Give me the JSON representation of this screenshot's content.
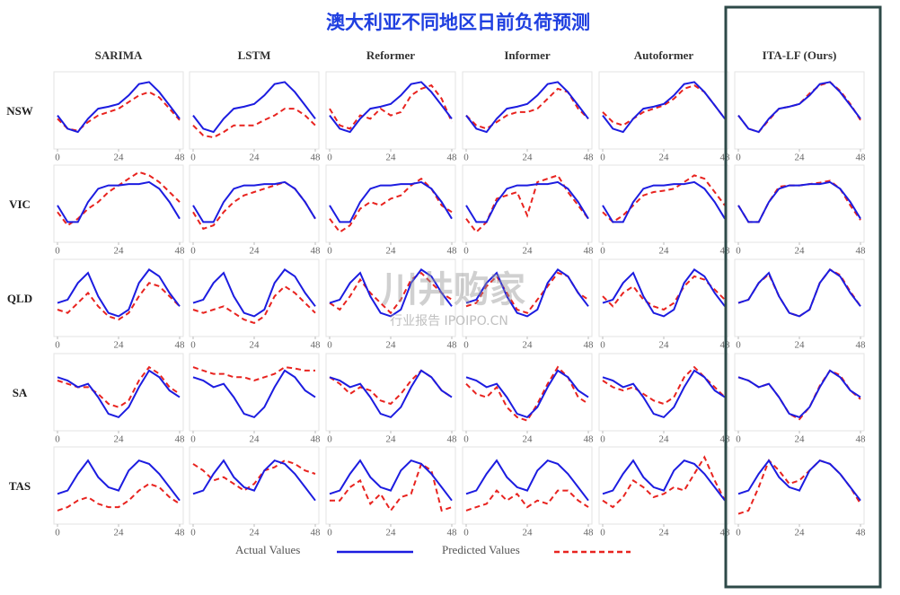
{
  "chart_data": {
    "type": "line",
    "title": "澳大利亚不同地区日前负荷预测",
    "models": [
      "SARIMA",
      "LSTM",
      "Reformer",
      "Informer",
      "Autoformer",
      "ITA-LF (Ours)"
    ],
    "regions": [
      "NSW",
      "VIC",
      "QLD",
      "SA",
      "TAS"
    ],
    "highlight": 5,
    "x": [
      0,
      4,
      8,
      12,
      16,
      20,
      24,
      28,
      32,
      36,
      40,
      44,
      48
    ],
    "xlim": [
      0,
      48
    ],
    "xticks": [
      0,
      24,
      48
    ],
    "ylim": [
      0,
      1.05
    ],
    "series": [
      {
        "name": "Actual Values",
        "color": "#1c1ce0",
        "style": "solid"
      },
      {
        "name": "Predicted Values",
        "color": "#e8231f",
        "style": "dashed"
      }
    ],
    "actual": [
      [
        0.45,
        0.25,
        0.2,
        0.4,
        0.55,
        0.58,
        0.62,
        0.75,
        0.92,
        0.95,
        0.8,
        0.6,
        0.4
      ],
      [
        0.5,
        0.25,
        0.25,
        0.55,
        0.75,
        0.8,
        0.8,
        0.82,
        0.82,
        0.85,
        0.75,
        0.55,
        0.3
      ],
      [
        0.45,
        0.5,
        0.75,
        0.9,
        0.55,
        0.3,
        0.25,
        0.35,
        0.75,
        0.95,
        0.85,
        0.6,
        0.4
      ],
      [
        0.75,
        0.7,
        0.6,
        0.65,
        0.45,
        0.2,
        0.15,
        0.3,
        0.6,
        0.85,
        0.75,
        0.55,
        0.45
      ],
      [
        0.4,
        0.45,
        0.7,
        0.9,
        0.65,
        0.5,
        0.45,
        0.75,
        0.9,
        0.85,
        0.7,
        0.5,
        0.3
      ]
    ],
    "predicted": [
      [
        [
          0.4,
          0.25,
          0.22,
          0.35,
          0.45,
          0.5,
          0.55,
          0.65,
          0.75,
          0.8,
          0.72,
          0.55,
          0.38
        ],
        [
          0.3,
          0.15,
          0.12,
          0.2,
          0.3,
          0.3,
          0.3,
          0.38,
          0.45,
          0.55,
          0.55,
          0.45,
          0.3
        ],
        [
          0.55,
          0.3,
          0.25,
          0.45,
          0.4,
          0.55,
          0.45,
          0.5,
          0.75,
          0.85,
          0.9,
          0.7,
          0.35
        ],
        [
          0.45,
          0.3,
          0.25,
          0.35,
          0.45,
          0.5,
          0.5,
          0.55,
          0.7,
          0.85,
          0.8,
          0.55,
          0.4
        ],
        [
          0.5,
          0.35,
          0.3,
          0.4,
          0.5,
          0.55,
          0.6,
          0.7,
          0.85,
          0.9,
          0.8,
          0.6,
          0.4
        ],
        [
          0.45,
          0.25,
          0.2,
          0.38,
          0.55,
          0.58,
          0.62,
          0.78,
          0.9,
          0.95,
          0.82,
          0.62,
          0.38
        ]
      ],
      [
        [
          0.4,
          0.2,
          0.3,
          0.45,
          0.55,
          0.7,
          0.8,
          0.9,
          1.0,
          0.95,
          0.85,
          0.7,
          0.55
        ],
        [
          0.4,
          0.15,
          0.2,
          0.4,
          0.55,
          0.65,
          0.7,
          0.75,
          0.8,
          0.85,
          0.75,
          0.55,
          0.3
        ],
        [
          0.3,
          0.1,
          0.2,
          0.45,
          0.55,
          0.5,
          0.6,
          0.65,
          0.8,
          0.9,
          0.75,
          0.5,
          0.4
        ],
        [
          0.3,
          0.1,
          0.25,
          0.6,
          0.65,
          0.7,
          0.35,
          0.85,
          0.9,
          0.95,
          0.7,
          0.5,
          0.3
        ],
        [
          0.4,
          0.25,
          0.35,
          0.5,
          0.65,
          0.7,
          0.72,
          0.75,
          0.85,
          0.95,
          0.9,
          0.7,
          0.5
        ],
        [
          0.5,
          0.25,
          0.25,
          0.55,
          0.78,
          0.8,
          0.8,
          0.82,
          0.84,
          0.87,
          0.75,
          0.5,
          0.28
        ]
      ],
      [
        [
          0.35,
          0.3,
          0.45,
          0.6,
          0.4,
          0.25,
          0.2,
          0.3,
          0.55,
          0.75,
          0.7,
          0.55,
          0.4
        ],
        [
          0.35,
          0.3,
          0.35,
          0.4,
          0.3,
          0.2,
          0.15,
          0.25,
          0.55,
          0.7,
          0.6,
          0.45,
          0.3
        ],
        [
          0.45,
          0.35,
          0.55,
          0.8,
          0.6,
          0.45,
          0.3,
          0.5,
          0.8,
          0.9,
          0.75,
          0.6,
          0.5
        ],
        [
          0.4,
          0.45,
          0.7,
          0.85,
          0.6,
          0.35,
          0.3,
          0.5,
          0.7,
          0.9,
          0.85,
          0.6,
          0.5
        ],
        [
          0.55,
          0.4,
          0.6,
          0.7,
          0.5,
          0.4,
          0.35,
          0.45,
          0.7,
          0.85,
          0.8,
          0.65,
          0.5
        ],
        [
          0.45,
          0.5,
          0.75,
          0.88,
          0.55,
          0.3,
          0.25,
          0.35,
          0.75,
          0.95,
          0.87,
          0.62,
          0.4
        ]
      ],
      [
        [
          0.7,
          0.65,
          0.6,
          0.6,
          0.5,
          0.35,
          0.3,
          0.4,
          0.7,
          0.9,
          0.8,
          0.6,
          0.5
        ],
        [
          0.9,
          0.85,
          0.8,
          0.8,
          0.75,
          0.75,
          0.7,
          0.75,
          0.8,
          0.9,
          0.88,
          0.85,
          0.85
        ],
        [
          0.75,
          0.65,
          0.5,
          0.6,
          0.55,
          0.4,
          0.35,
          0.5,
          0.7,
          0.85,
          0.75,
          0.55,
          0.45
        ],
        [
          0.65,
          0.5,
          0.45,
          0.6,
          0.3,
          0.15,
          0.1,
          0.35,
          0.65,
          0.9,
          0.75,
          0.45,
          0.35
        ],
        [
          0.7,
          0.6,
          0.55,
          0.6,
          0.5,
          0.4,
          0.35,
          0.45,
          0.75,
          0.9,
          0.75,
          0.6,
          0.45
        ],
        [
          0.75,
          0.7,
          0.6,
          0.65,
          0.45,
          0.2,
          0.12,
          0.3,
          0.62,
          0.85,
          0.78,
          0.55,
          0.42
        ]
      ],
      [
        [
          0.15,
          0.2,
          0.3,
          0.35,
          0.25,
          0.2,
          0.2,
          0.3,
          0.45,
          0.55,
          0.5,
          0.35,
          0.25
        ],
        [
          0.85,
          0.75,
          0.6,
          0.65,
          0.55,
          0.45,
          0.55,
          0.75,
          0.8,
          0.9,
          0.85,
          0.75,
          0.7
        ],
        [
          0.3,
          0.3,
          0.5,
          0.6,
          0.25,
          0.4,
          0.15,
          0.35,
          0.4,
          0.85,
          0.75,
          0.15,
          0.2
        ],
        [
          0.15,
          0.2,
          0.25,
          0.45,
          0.3,
          0.4,
          0.2,
          0.3,
          0.25,
          0.45,
          0.45,
          0.3,
          0.2
        ],
        [
          0.3,
          0.2,
          0.35,
          0.6,
          0.5,
          0.35,
          0.4,
          0.5,
          0.45,
          0.7,
          0.95,
          0.6,
          0.3
        ],
        [
          0.1,
          0.15,
          0.5,
          0.9,
          0.75,
          0.55,
          0.6,
          0.75,
          0.9,
          0.85,
          0.7,
          0.5,
          0.25
        ]
      ]
    ]
  },
  "watermark": {
    "logo": "川井购家",
    "sub": "行业报告 IPOIPO.CN"
  }
}
